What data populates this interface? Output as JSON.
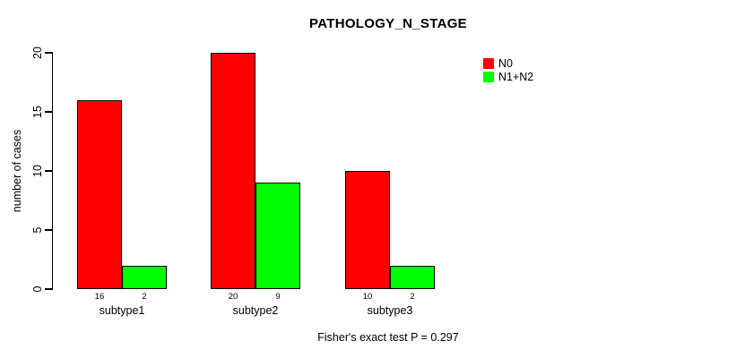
{
  "chart_data": {
    "type": "bar",
    "title": "PATHOLOGY_N_STAGE",
    "ylabel": "number of cases",
    "xlabel": "",
    "categories": [
      "subtype1",
      "subtype2",
      "subtype3"
    ],
    "series": [
      {
        "name": "N0",
        "color": "#ff0000",
        "values": [
          16,
          20,
          10
        ]
      },
      {
        "name": "N1+N2",
        "color": "#00ff00",
        "values": [
          2,
          9,
          2
        ]
      }
    ],
    "bar_value_labels": [
      [
        "16",
        "2"
      ],
      [
        "20",
        "9"
      ],
      [
        "10",
        "2"
      ]
    ],
    "ylim": [
      0,
      20
    ],
    "yticks": [
      0,
      5,
      10,
      15,
      20
    ],
    "grid": false,
    "legend_position": "right-inside",
    "background_color": "#ffffff",
    "axis_color": "#000000",
    "caption": "Fisher's exact test P = 0.297"
  }
}
